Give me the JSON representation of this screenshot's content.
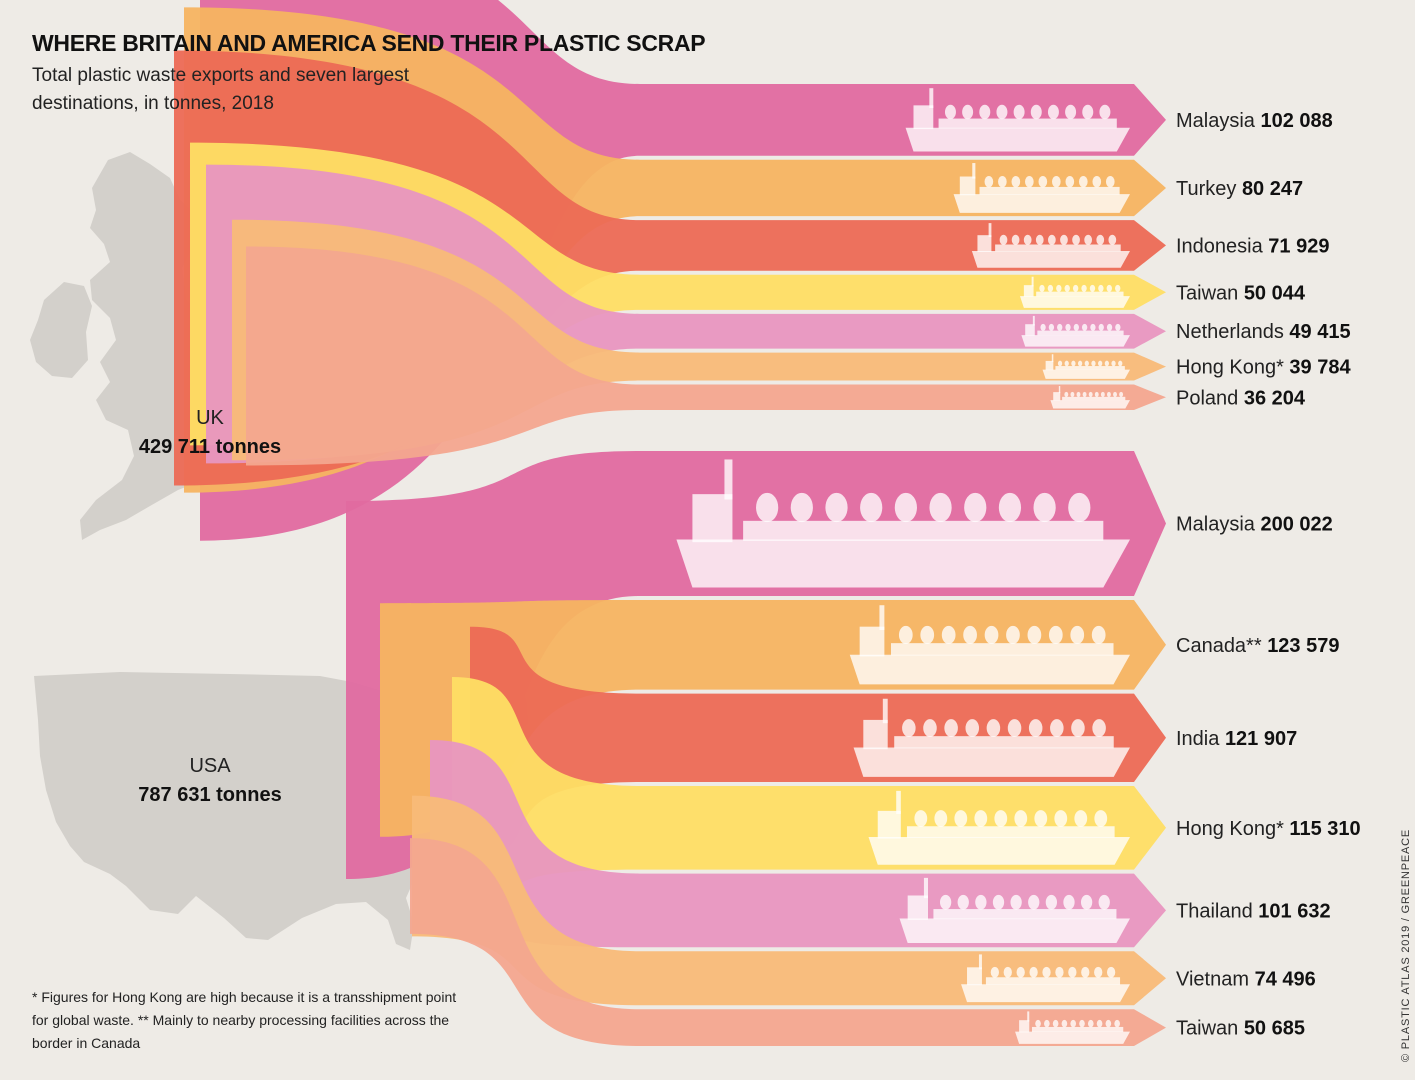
{
  "title": "WHERE BRITAIN AND AMERICA SEND THEIR PLASTIC SCRAP",
  "subtitle": "Total plastic waste exports and seven largest destinations, in tonnes, 2018",
  "footnote": "* Figures for Hong Kong are high because it is a transshipment point for global waste.  ** Mainly to nearby processing facilities across the border in Canada",
  "credit": "© PLASTIC ATLAS 2019 / GREENPEACE",
  "colors": {
    "background": "#eeebe6",
    "map": "#d3d0cb",
    "ship": "#ffffff",
    "flow_palette": [
      "#e06aa0",
      "#f5b461",
      "#ec6a55",
      "#fede64",
      "#e896c0",
      "#f8ba78",
      "#f3a78f"
    ]
  },
  "chart_data": {
    "type": "sankey",
    "unit": "tonnes",
    "year": 2018,
    "sources": [
      {
        "name": "UK",
        "total_label": "429 711 tonnes",
        "total": 429711,
        "flows": [
          {
            "country": "Malaysia",
            "value": 102088,
            "value_label": "102 088",
            "color": "#e06aa0"
          },
          {
            "country": "Turkey",
            "value": 80247,
            "value_label": "80 247",
            "color": "#f5b461"
          },
          {
            "country": "Indonesia",
            "value": 71929,
            "value_label": "71 929",
            "color": "#ec6a55"
          },
          {
            "country": "Taiwan",
            "value": 50044,
            "value_label": "50 044",
            "color": "#fede64"
          },
          {
            "country": "Netherlands",
            "value": 49415,
            "value_label": "49 415",
            "color": "#e896c0"
          },
          {
            "country": "Hong Kong*",
            "value": 39784,
            "value_label": "39 784",
            "color": "#f8ba78"
          },
          {
            "country": "Poland",
            "value": 36204,
            "value_label": "36 204",
            "color": "#f3a78f"
          }
        ]
      },
      {
        "name": "USA",
        "total_label": "787 631 tonnes",
        "total": 787631,
        "flows": [
          {
            "country": "Malaysia",
            "value": 200022,
            "value_label": "200 022",
            "color": "#e06aa0"
          },
          {
            "country": "Canada**",
            "value": 123579,
            "value_label": "123 579",
            "color": "#f5b461"
          },
          {
            "country": "India",
            "value": 121907,
            "value_label": "121 907",
            "color": "#ec6a55"
          },
          {
            "country": "Hong Kong*",
            "value": 115310,
            "value_label": "115 310",
            "color": "#fede64"
          },
          {
            "country": "Thailand",
            "value": 101632,
            "value_label": "101 632",
            "color": "#e896c0"
          },
          {
            "country": "Vietnam",
            "value": 74496,
            "value_label": "74 496",
            "color": "#f8ba78"
          },
          {
            "country": "Taiwan",
            "value": 50685,
            "value_label": "50 685",
            "color": "#f3a78f"
          }
        ]
      }
    ]
  }
}
